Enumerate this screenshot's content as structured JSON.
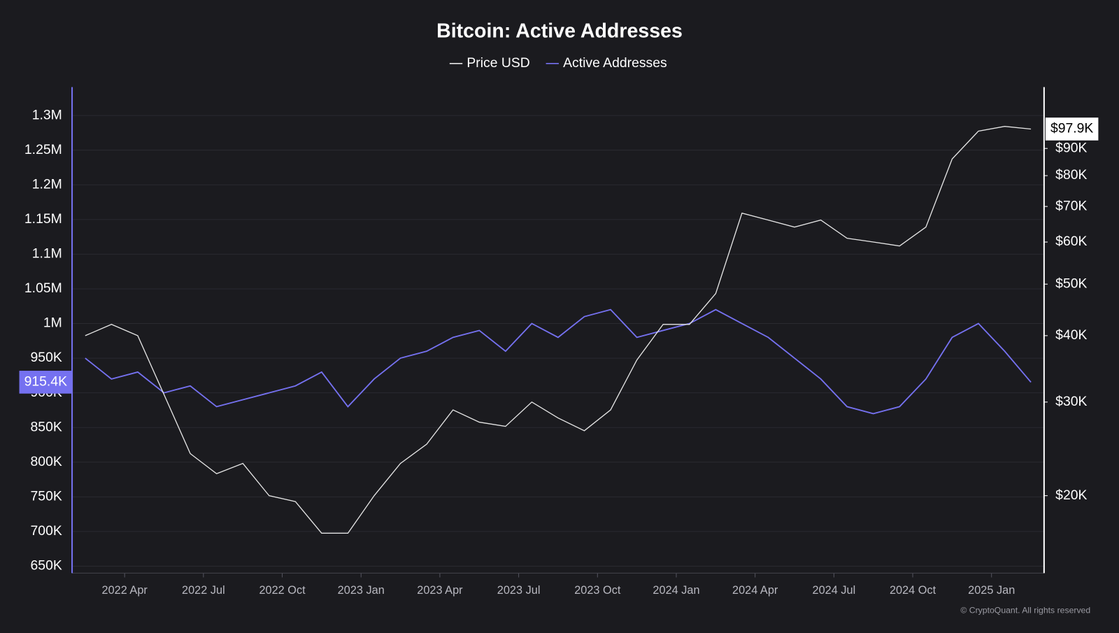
{
  "chart_data": {
    "type": "line",
    "title": "Bitcoin: Active Addresses",
    "x": [
      "2022-02",
      "2022-03",
      "2022-04",
      "2022-05",
      "2022-06",
      "2022-07",
      "2022-08",
      "2022-09",
      "2022-10",
      "2022-11",
      "2022-12",
      "2023-01",
      "2023-02",
      "2023-03",
      "2023-04",
      "2023-05",
      "2023-06",
      "2023-07",
      "2023-08",
      "2023-09",
      "2023-10",
      "2023-11",
      "2023-12",
      "2024-01",
      "2024-02",
      "2024-03",
      "2024-04",
      "2024-05",
      "2024-06",
      "2024-07",
      "2024-08",
      "2024-09",
      "2024-10",
      "2024-11",
      "2024-12",
      "2025-01",
      "2025-02"
    ],
    "xlim": [
      "2022-02",
      "2025-03"
    ],
    "xticks": [
      {
        "value": "2022-04",
        "label": "2022 Apr"
      },
      {
        "value": "2022-07",
        "label": "2022 Jul"
      },
      {
        "value": "2022-10",
        "label": "2022 Oct"
      },
      {
        "value": "2023-01",
        "label": "2023 Jan"
      },
      {
        "value": "2023-04",
        "label": "2023 Apr"
      },
      {
        "value": "2023-07",
        "label": "2023 Jul"
      },
      {
        "value": "2023-10",
        "label": "2023 Oct"
      },
      {
        "value": "2024-01",
        "label": "2024 Jan"
      },
      {
        "value": "2024-04",
        "label": "2024 Apr"
      },
      {
        "value": "2024-07",
        "label": "2024 Jul"
      },
      {
        "value": "2024-10",
        "label": "2024 Oct"
      },
      {
        "value": "2025-01",
        "label": "2025 Jan"
      }
    ],
    "series": [
      {
        "name": "Price USD",
        "color": "#e6e6e6",
        "axis": "y2",
        "last_label": "$97.9K",
        "values": [
          40000,
          42000,
          40000,
          31000,
          24000,
          22000,
          23000,
          20000,
          19500,
          17000,
          17000,
          20000,
          23000,
          25000,
          29000,
          27500,
          27000,
          30000,
          28000,
          26500,
          29000,
          36000,
          42000,
          42000,
          48000,
          68000,
          66000,
          64000,
          66000,
          61000,
          60000,
          59000,
          64000,
          86000,
          97000,
          99000,
          97900
        ]
      },
      {
        "name": "Active Addresses",
        "color": "#7571f0",
        "last_label": "915.4K",
        "values": [
          950000,
          920000,
          930000,
          900000,
          910000,
          880000,
          890000,
          900000,
          910000,
          930000,
          880000,
          920000,
          950000,
          960000,
          980000,
          990000,
          960000,
          1000000,
          980000,
          1010000,
          1020000,
          980000,
          990000,
          1000000,
          1020000,
          1000000,
          980000,
          950000,
          920000,
          880000,
          870000,
          880000,
          920000,
          980000,
          1000000,
          960000,
          915400
        ]
      }
    ],
    "ylim": [
      640000,
      1341000
    ],
    "yticks": [
      {
        "value": 650000,
        "label": "650K"
      },
      {
        "value": 700000,
        "label": "700K"
      },
      {
        "value": 750000,
        "label": "750K"
      },
      {
        "value": 800000,
        "label": "800K"
      },
      {
        "value": 850000,
        "label": "850K"
      },
      {
        "value": 900000,
        "label": "900K"
      },
      {
        "value": 950000,
        "label": "950K"
      },
      {
        "value": 1000000,
        "label": "1M"
      },
      {
        "value": 1050000,
        "label": "1.05M"
      },
      {
        "value": 1100000,
        "label": "1.1M"
      },
      {
        "value": 1150000,
        "label": "1.15M"
      },
      {
        "value": 1200000,
        "label": "1.2M"
      },
      {
        "value": 1250000,
        "label": "1.25M"
      },
      {
        "value": 1300000,
        "label": "1.3M"
      }
    ],
    "y2lim": [
      14300,
      117400
    ],
    "y2log": true,
    "y2ticks": [
      {
        "value": 20000,
        "label": "$20K"
      },
      {
        "value": 30000,
        "label": "$30K"
      },
      {
        "value": 40000,
        "label": "$40K"
      },
      {
        "value": 50000,
        "label": "$50K"
      },
      {
        "value": 60000,
        "label": "$60K"
      },
      {
        "value": 70000,
        "label": "$70K"
      },
      {
        "value": 80000,
        "label": "$80K"
      },
      {
        "value": 90000,
        "label": "$90K"
      }
    ],
    "grid": true,
    "footer": "© CryptoQuant. All rights reserved"
  }
}
